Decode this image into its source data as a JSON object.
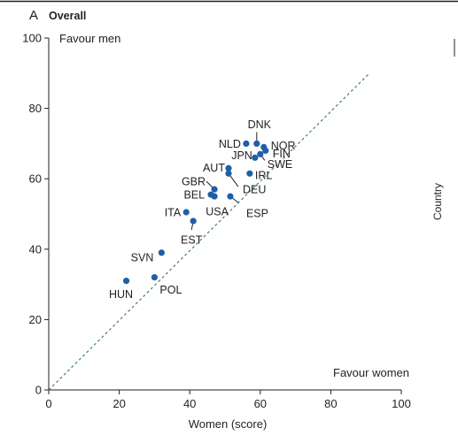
{
  "chart_data": {
    "type": "scatter",
    "panel_letter": "A",
    "title": "Overall",
    "xlabel": "Women (score)",
    "ylabel": "",
    "xlim": [
      0,
      100
    ],
    "ylim": [
      0,
      100
    ],
    "xticks": [
      0,
      20,
      40,
      60,
      80,
      100
    ],
    "yticks": [
      0,
      20,
      40,
      60,
      80,
      100
    ],
    "annotations": {
      "top_left": "Favour men",
      "bottom_right": "Favour women"
    },
    "reference_line": {
      "style": "dashed",
      "from": [
        0,
        0
      ],
      "to": [
        91,
        90
      ]
    },
    "side_label": "Country",
    "marker_color": "#1f5fa8",
    "line_color": "#3e7f7a",
    "points": [
      {
        "label": "DNK",
        "x": 59.0,
        "y": 70.0
      },
      {
        "label": "NLD",
        "x": 56.0,
        "y": 70.0
      },
      {
        "label": "NOR",
        "x": 61.0,
        "y": 69.0
      },
      {
        "label": "FIN",
        "x": 61.5,
        "y": 68.0
      },
      {
        "label": "SWE",
        "x": 60.0,
        "y": 67.0
      },
      {
        "label": "JPN",
        "x": 58.5,
        "y": 66.0
      },
      {
        "label": "AUT",
        "x": 51.0,
        "y": 63.0
      },
      {
        "label": "IRL",
        "x": 57.0,
        "y": 61.5
      },
      {
        "label": "GBR",
        "x": 47.0,
        "y": 57.0
      },
      {
        "label": "BEL",
        "x": 46.0,
        "y": 55.5
      },
      {
        "label": "DEU",
        "x": 51.0,
        "y": 61.5
      },
      {
        "label": "USA",
        "x": 47.0,
        "y": 55.0
      },
      {
        "label": "ESP",
        "x": 51.5,
        "y": 55.0
      },
      {
        "label": "ITA",
        "x": 39.0,
        "y": 50.5
      },
      {
        "label": "EST",
        "x": 41.0,
        "y": 48.0
      },
      {
        "label": "SVN",
        "x": 32.0,
        "y": 39.0
      },
      {
        "label": "HUN",
        "x": 22.0,
        "y": 31.0
      },
      {
        "label": "POL",
        "x": 30.0,
        "y": 32.0
      }
    ]
  }
}
